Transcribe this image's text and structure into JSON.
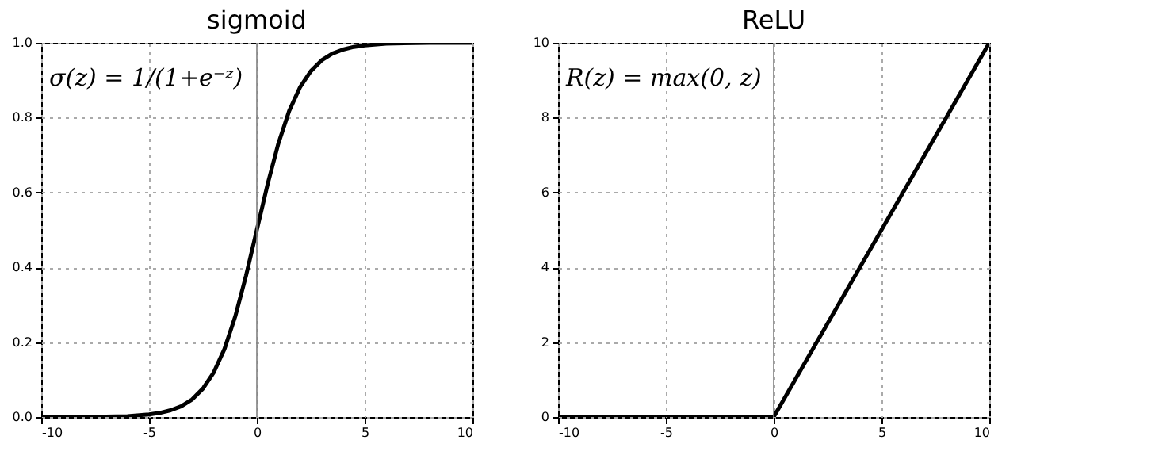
{
  "chart_data": [
    {
      "type": "line",
      "title": "sigmoid",
      "x": [
        -10,
        -8,
        -6,
        -5,
        -4.5,
        -4,
        -3.5,
        -3,
        -2.5,
        -2,
        -1.5,
        -1,
        -0.5,
        0,
        0.5,
        1,
        1.5,
        2,
        2.5,
        3,
        3.5,
        4,
        4.5,
        5,
        6,
        8,
        10
      ],
      "series": [
        {
          "color": "#000000",
          "values": [
            0.0,
            0.0,
            0.002,
            0.007,
            0.011,
            0.018,
            0.029,
            0.047,
            0.076,
            0.119,
            0.182,
            0.269,
            0.378,
            0.5,
            0.622,
            0.731,
            0.818,
            0.881,
            0.924,
            0.953,
            0.971,
            0.982,
            0.989,
            0.993,
            0.998,
            1.0,
            1.0
          ]
        }
      ],
      "xlim": [
        -10,
        10
      ],
      "xticks": [
        -10,
        -5,
        0,
        5,
        10
      ],
      "ylim": [
        0,
        1
      ],
      "yticks": [
        {
          "value": 0,
          "label": "0.0"
        },
        {
          "value": 0.2,
          "label": "0.2"
        },
        {
          "value": 0.4,
          "label": "0.4"
        },
        {
          "value": 0.6,
          "label": "0.6"
        },
        {
          "value": 0.8,
          "label": "0.8"
        },
        {
          "value": 1,
          "label": "1.0"
        }
      ],
      "grid": true,
      "marker": "none",
      "line_style": "solid",
      "ref_lines": [
        {
          "axis": "x",
          "value": 0,
          "color": "#808080"
        }
      ],
      "annotations": [
        "σ(z) = 1/(1+e⁻ᶻ)"
      ]
    },
    {
      "type": "line",
      "title": "ReLU",
      "x": [
        -10,
        0,
        10
      ],
      "series": [
        {
          "color": "#000000",
          "values": [
            0,
            0,
            10
          ]
        }
      ],
      "xlim": [
        -10,
        10
      ],
      "xticks": [
        -10,
        -5,
        0,
        5,
        10
      ],
      "ylim": [
        0,
        10
      ],
      "yticks": [
        0,
        2,
        4,
        6,
        8,
        10
      ],
      "grid": true,
      "marker": "none",
      "line_style": "solid",
      "ref_lines": [
        {
          "axis": "x",
          "value": 0,
          "color": "#808080"
        }
      ],
      "annotations": [
        "R(z) = max(0,  z)"
      ]
    }
  ]
}
